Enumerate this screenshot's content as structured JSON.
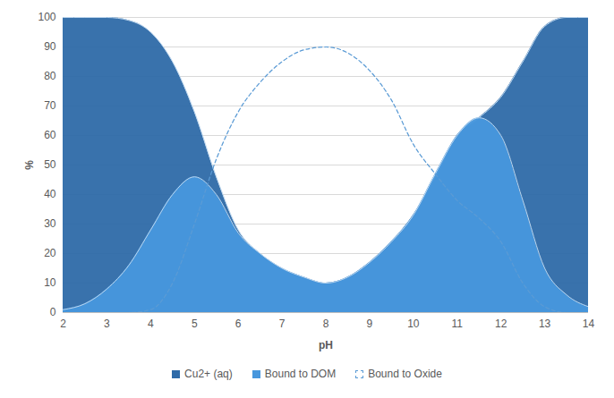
{
  "chart_data": {
    "type": "area",
    "x_label": "pH",
    "y_label": "%",
    "x": [
      2,
      2.5,
      3,
      3.5,
      4,
      4.5,
      5,
      5.5,
      6,
      6.5,
      7,
      7.5,
      8,
      8.5,
      9,
      9.5,
      10,
      10.5,
      11,
      11.5,
      12,
      12.5,
      13,
      13.5,
      14
    ],
    "series": [
      {
        "name": "Cu2+ (aq)",
        "type": "area",
        "color": "#2e6aa8",
        "values": [
          100,
          100,
          100,
          99,
          95,
          85,
          68,
          46,
          28,
          20,
          15,
          12,
          10,
          12,
          17,
          24,
          33,
          46,
          60,
          66,
          73,
          85,
          97,
          100,
          100
        ]
      },
      {
        "name": "Bound to DOM",
        "type": "area",
        "color": "#4797dd",
        "values": [
          1,
          3,
          8,
          16,
          28,
          40,
          46,
          40,
          27,
          20,
          15,
          12,
          10,
          12,
          17,
          24,
          33,
          47,
          60,
          66,
          60,
          38,
          15,
          6,
          2
        ]
      },
      {
        "name": "Bound to Oxide",
        "type": "line",
        "line_style": "dashed",
        "color": "#5b9bd5",
        "values": [
          0,
          0,
          0,
          0,
          1,
          10,
          30,
          52,
          68,
          78,
          85,
          89,
          90,
          88,
          82,
          72,
          57,
          47,
          38,
          32,
          24,
          10,
          2,
          0,
          0
        ]
      }
    ],
    "xlim": [
      2,
      14
    ],
    "xticks": [
      2,
      3,
      4,
      5,
      6,
      7,
      8,
      9,
      10,
      11,
      12,
      13,
      14
    ],
    "ylim": [
      0,
      100
    ],
    "yticks": [
      0,
      10,
      20,
      30,
      40,
      50,
      60,
      70,
      80,
      90,
      100
    ],
    "grid": true,
    "legend": "bottom"
  }
}
